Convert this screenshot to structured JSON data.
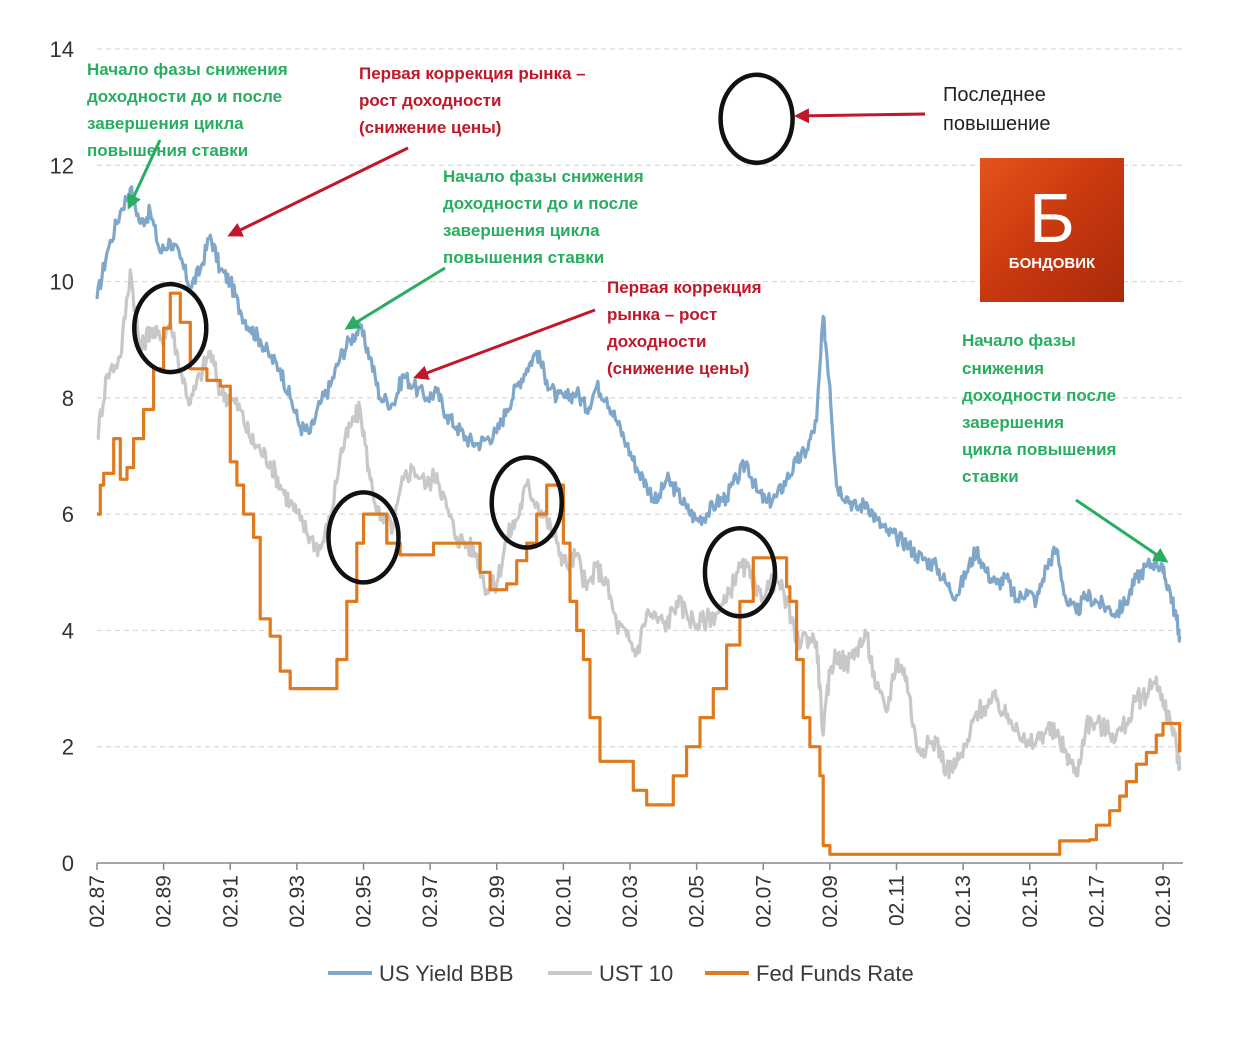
{
  "chart_data": {
    "type": "line",
    "ylim": [
      0,
      14
    ],
    "y_ticks": [
      "0",
      "2",
      "4",
      "6",
      "8",
      "10",
      "12",
      "14"
    ],
    "grid": true,
    "legend_position": "bottom",
    "x_ticks": [
      "02.87",
      "02.89",
      "02.91",
      "02.93",
      "02.95",
      "02.97",
      "02.99",
      "02.01",
      "02.03",
      "02.05",
      "02.07",
      "02.09",
      "02.11",
      "02.13",
      "02.15",
      "02.17",
      "02.19"
    ],
    "x_tick_values": [
      1987.1,
      1989.1,
      1991.1,
      1993.1,
      1995.1,
      1997.1,
      1999.1,
      2001.1,
      2003.1,
      2005.1,
      2007.1,
      2009.1,
      2011.1,
      2013.1,
      2015.1,
      2017.1,
      2019.1
    ],
    "xlim": [
      1987.1,
      2019.7
    ],
    "series": [
      {
        "name": "US Yield BBB",
        "color": "#7fa7c9",
        "x": [
          1987.1,
          1987.4,
          1987.8,
          1988.1,
          1988.4,
          1988.7,
          1989.0,
          1989.3,
          1989.6,
          1989.9,
          1990.2,
          1990.5,
          1990.8,
          1991.1,
          1991.4,
          1991.7,
          1992.0,
          1992.3,
          1992.6,
          1992.9,
          1993.2,
          1993.5,
          1993.8,
          1994.1,
          1994.4,
          1994.7,
          1995.0,
          1995.3,
          1995.6,
          1996.0,
          1996.3,
          1996.6,
          1997.0,
          1997.3,
          1997.6,
          1997.9,
          1998.2,
          1998.5,
          1998.8,
          1999.1,
          1999.4,
          1999.7,
          2000.0,
          2000.3,
          2000.6,
          2000.9,
          2001.2,
          2001.5,
          2001.8,
          2002.1,
          2002.4,
          2002.7,
          2003.0,
          2003.3,
          2003.6,
          2003.9,
          2004.2,
          2004.5,
          2004.8,
          2005.1,
          2005.4,
          2005.7,
          2006.0,
          2006.3,
          2006.6,
          2006.9,
          2007.2,
          2007.5,
          2007.8,
          2008.1,
          2008.4,
          2008.7,
          2008.9,
          2009.1,
          2009.3,
          2009.6,
          2009.9,
          2010.2,
          2010.5,
          2010.8,
          2011.1,
          2011.4,
          2011.7,
          2012.0,
          2012.3,
          2012.6,
          2012.9,
          2013.2,
          2013.5,
          2013.8,
          2014.1,
          2014.4,
          2014.7,
          2015.0,
          2015.3,
          2015.6,
          2015.9,
          2016.2,
          2016.5,
          2016.8,
          2017.1,
          2017.4,
          2017.7,
          2018.0,
          2018.3,
          2018.6,
          2018.9,
          2019.1,
          2019.3,
          2019.5,
          2019.6
        ],
        "values": [
          9.7,
          10.5,
          11.2,
          11.6,
          11.0,
          11.2,
          10.5,
          10.7,
          10.4,
          9.9,
          10.2,
          10.8,
          10.2,
          10.0,
          9.5,
          9.2,
          9.0,
          8.7,
          8.5,
          8.0,
          7.5,
          7.4,
          7.9,
          8.2,
          8.7,
          9.0,
          9.2,
          8.7,
          8.0,
          7.9,
          8.4,
          8.2,
          8.0,
          8.1,
          7.7,
          7.5,
          7.3,
          7.2,
          7.3,
          7.4,
          7.8,
          8.2,
          8.5,
          8.8,
          8.3,
          8.0,
          8.0,
          8.1,
          7.8,
          8.2,
          8.0,
          7.6,
          7.2,
          6.8,
          6.5,
          6.2,
          6.6,
          6.4,
          6.1,
          5.9,
          6.0,
          6.2,
          6.3,
          6.6,
          6.9,
          6.4,
          6.2,
          6.3,
          6.6,
          6.9,
          7.1,
          7.6,
          9.4,
          8.2,
          6.5,
          6.3,
          6.1,
          6.2,
          5.9,
          5.7,
          5.6,
          5.5,
          5.3,
          5.2,
          5.1,
          4.8,
          4.6,
          5.0,
          5.4,
          5.0,
          4.8,
          4.9,
          4.5,
          4.7,
          4.5,
          5.1,
          5.4,
          4.5,
          4.3,
          4.6,
          4.5,
          4.4,
          4.3,
          4.5,
          4.9,
          5.1,
          5.2,
          5.0,
          4.7,
          4.2,
          3.9
        ]
      },
      {
        "name": "UST 10",
        "color": "#c8c8c8",
        "x": [
          1987.1,
          1987.4,
          1987.8,
          1988.1,
          1988.4,
          1988.7,
          1989.0,
          1989.3,
          1989.6,
          1989.9,
          1990.2,
          1990.5,
          1990.8,
          1991.1,
          1991.4,
          1991.7,
          1992.0,
          1992.3,
          1992.6,
          1992.9,
          1993.2,
          1993.5,
          1993.8,
          1994.1,
          1994.4,
          1994.7,
          1995.0,
          1995.3,
          1995.6,
          1996.0,
          1996.3,
          1996.6,
          1997.0,
          1997.3,
          1997.6,
          1997.9,
          1998.2,
          1998.5,
          1998.8,
          1999.1,
          1999.4,
          1999.7,
          2000.0,
          2000.3,
          2000.6,
          2000.9,
          2001.2,
          2001.5,
          2001.8,
          2002.1,
          2002.4,
          2002.7,
          2003.0,
          2003.3,
          2003.6,
          2003.9,
          2004.2,
          2004.5,
          2004.8,
          2005.1,
          2005.4,
          2005.7,
          2006.0,
          2006.3,
          2006.6,
          2006.9,
          2007.2,
          2007.5,
          2007.8,
          2008.1,
          2008.4,
          2008.7,
          2008.9,
          2009.1,
          2009.3,
          2009.6,
          2009.9,
          2010.2,
          2010.5,
          2010.8,
          2011.1,
          2011.4,
          2011.7,
          2012.0,
          2012.3,
          2012.6,
          2012.9,
          2013.2,
          2013.5,
          2013.8,
          2014.1,
          2014.4,
          2014.7,
          2015.0,
          2015.3,
          2015.6,
          2015.9,
          2016.2,
          2016.5,
          2016.8,
          2017.1,
          2017.4,
          2017.7,
          2018.0,
          2018.3,
          2018.6,
          2018.9,
          2019.1,
          2019.3,
          2019.5,
          2019.6
        ],
        "values": [
          7.3,
          8.4,
          8.7,
          10.2,
          8.8,
          9.2,
          9.0,
          9.3,
          8.5,
          7.9,
          8.4,
          8.8,
          8.1,
          8.0,
          7.8,
          7.3,
          7.1,
          6.9,
          6.5,
          6.2,
          5.9,
          5.6,
          5.4,
          5.9,
          7.0,
          7.5,
          7.8,
          6.6,
          5.9,
          5.8,
          6.6,
          6.8,
          6.5,
          6.7,
          6.1,
          5.6,
          5.5,
          5.3,
          4.7,
          4.8,
          5.6,
          5.9,
          6.5,
          6.2,
          5.9,
          5.5,
          5.1,
          5.3,
          4.7,
          5.1,
          4.8,
          4.1,
          3.9,
          3.6,
          4.3,
          4.2,
          4.1,
          4.5,
          4.3,
          4.1,
          4.2,
          4.3,
          4.5,
          5.0,
          5.1,
          4.6,
          4.7,
          4.9,
          4.5,
          3.8,
          3.9,
          3.8,
          2.2,
          3.3,
          3.6,
          3.4,
          3.7,
          3.9,
          3.0,
          2.6,
          3.5,
          3.2,
          2.0,
          2.0,
          2.1,
          1.6,
          1.7,
          2.0,
          2.6,
          2.7,
          2.8,
          2.5,
          2.4,
          2.0,
          2.1,
          2.3,
          2.2,
          1.9,
          1.5,
          2.4,
          2.4,
          2.3,
          2.2,
          2.4,
          2.8,
          2.9,
          3.2,
          2.7,
          2.5,
          2.0,
          1.6
        ]
      },
      {
        "name": "Fed Funds Rate",
        "color": "#e07a1f",
        "x": [
          1987.1,
          1987.2,
          1987.3,
          1987.6,
          1987.8,
          1988.0,
          1988.2,
          1988.5,
          1988.8,
          1989.1,
          1989.3,
          1989.6,
          1989.9,
          1990.4,
          1990.8,
          1991.1,
          1991.3,
          1991.5,
          1991.8,
          1992.0,
          1992.3,
          1992.6,
          1992.9,
          1993.5,
          1994.0,
          1994.3,
          1994.6,
          1994.9,
          1995.1,
          1995.5,
          1995.8,
          1996.2,
          1996.8,
          1997.2,
          1997.8,
          1998.2,
          1998.6,
          1998.9,
          1999.4,
          1999.7,
          2000.0,
          2000.3,
          2000.6,
          2000.9,
          2001.1,
          2001.3,
          2001.5,
          2001.7,
          2001.9,
          2002.2,
          2002.8,
          2003.2,
          2003.6,
          2004.0,
          2004.4,
          2004.8,
          2005.2,
          2005.6,
          2006.0,
          2006.4,
          2006.8,
          2007.2,
          2007.5,
          2007.8,
          2007.9,
          2008.1,
          2008.3,
          2008.5,
          2008.8,
          2008.9,
          2009.1,
          2010.0,
          2012.0,
          2014.0,
          2015.8,
          2016.0,
          2016.9,
          2017.1,
          2017.5,
          2017.8,
          2018.0,
          2018.3,
          2018.6,
          2018.9,
          2019.1,
          2019.4,
          2019.6
        ],
        "values": [
          6.0,
          6.5,
          6.7,
          7.3,
          6.6,
          6.8,
          7.3,
          7.8,
          8.5,
          9.2,
          9.8,
          9.3,
          8.5,
          8.3,
          8.2,
          6.9,
          6.5,
          6.0,
          5.6,
          4.2,
          3.9,
          3.3,
          3.0,
          3.0,
          3.0,
          3.5,
          4.5,
          5.5,
          6.0,
          6.0,
          5.5,
          5.3,
          5.3,
          5.5,
          5.5,
          5.5,
          5.0,
          4.7,
          4.8,
          5.2,
          5.5,
          6.0,
          6.5,
          6.5,
          5.5,
          4.5,
          4.0,
          3.5,
          2.5,
          1.75,
          1.75,
          1.25,
          1.0,
          1.0,
          1.5,
          2.0,
          2.5,
          3.0,
          3.75,
          4.5,
          5.25,
          5.25,
          5.25,
          4.75,
          4.5,
          3.5,
          2.5,
          2.0,
          1.5,
          0.3,
          0.15,
          0.15,
          0.15,
          0.15,
          0.15,
          0.38,
          0.4,
          0.65,
          0.9,
          1.15,
          1.4,
          1.7,
          1.9,
          2.2,
          2.4,
          2.4,
          1.9
        ]
      }
    ],
    "circled_points": [
      {
        "x": 1989.3,
        "y": 9.2
      },
      {
        "x": 1995.1,
        "y": 5.6
      },
      {
        "x": 2000.0,
        "y": 6.2
      },
      {
        "x": 2006.4,
        "y": 5.0
      },
      {
        "x": 2006.9,
        "y": 12.8
      }
    ]
  },
  "legend": [
    {
      "label": "US Yield BBB",
      "color": "#7fa7c9"
    },
    {
      "label": "UST 10",
      "color": "#c8c8c8"
    },
    {
      "label": "Fed Funds Rate",
      "color": "#e07a1f"
    }
  ],
  "annotations": {
    "green_1": [
      "Начало фазы снижения",
      "доходности до и после",
      "завершения цикла",
      "повышения ставки"
    ],
    "red_1": [
      "Первая коррекция рынка –",
      "рост доходности",
      "(снижение цены)"
    ],
    "green_2": [
      "Начало фазы снижения",
      "доходности до и после",
      "завершения цикла",
      "повышения ставки"
    ],
    "red_2": [
      "Первая коррекция",
      "рынка – рост",
      "доходности",
      "(снижение цены)"
    ],
    "last_hike": [
      "Последнее",
      "повышение"
    ],
    "green_3": [
      "Начало фазы",
      "снижения",
      "доходности после",
      "завершения",
      "цикла повышения",
      "ставки"
    ]
  },
  "logo": {
    "letter": "Б",
    "word": "БОНДОВИК"
  },
  "colors": {
    "green": "#27ae60",
    "red": "#c0182a",
    "black_text": "#222222"
  }
}
